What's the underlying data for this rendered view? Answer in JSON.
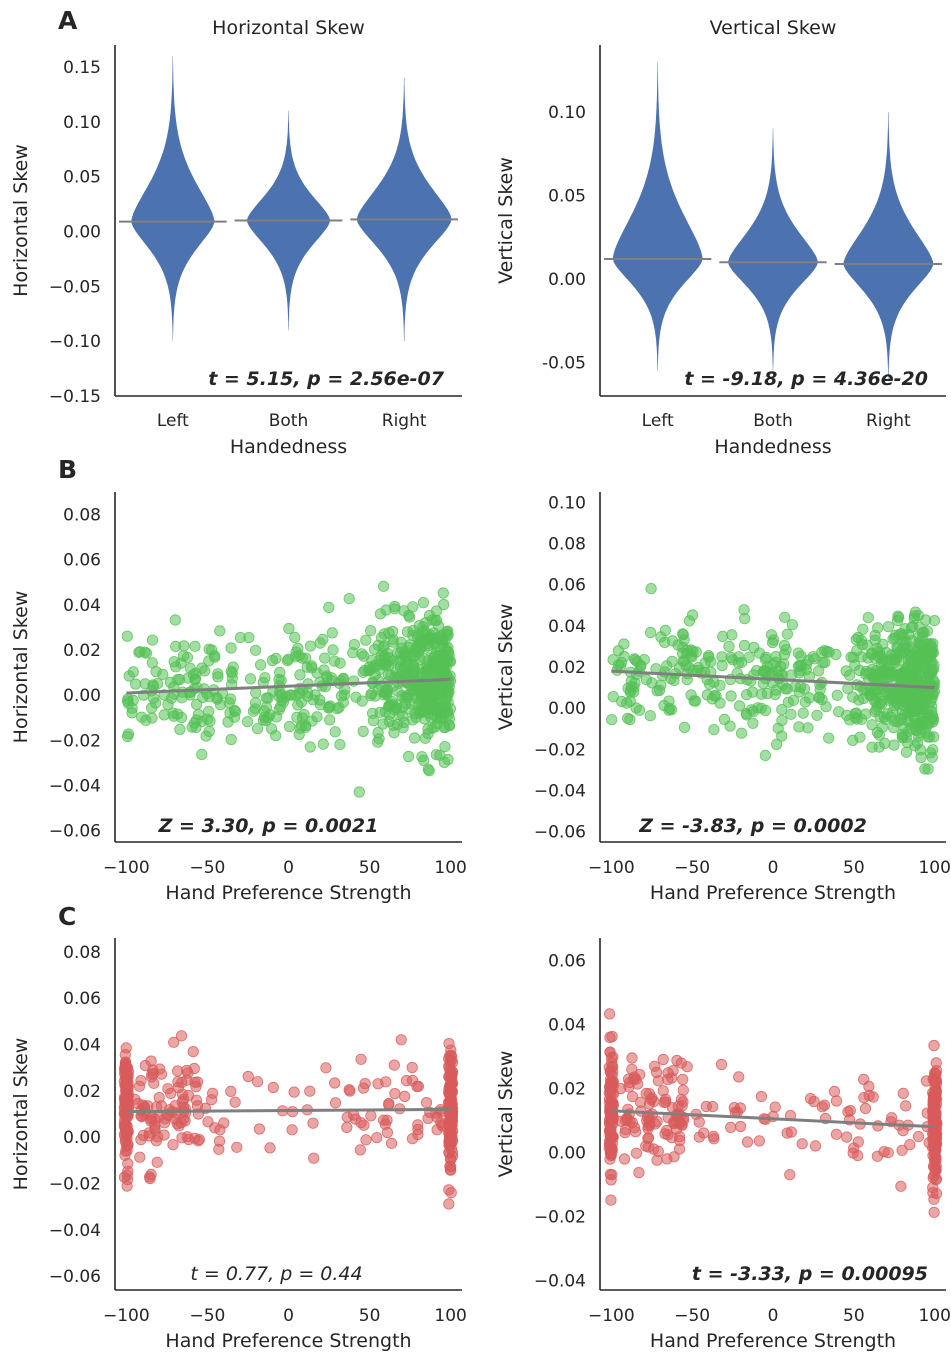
{
  "panel_letters": [
    "A",
    "B",
    "C"
  ],
  "colors": {
    "violin": "#4c72b0",
    "scatter_B": "#55c156",
    "scatter_C": "#d85b5b",
    "fit": "#7f7f7f",
    "axis": "#262626"
  },
  "chart_data": [
    {
      "panel": "A",
      "type": "violin",
      "title": "Horizontal Skew",
      "xlabel": "Handedness",
      "ylabel": "Horizontal Skew",
      "categories": [
        "Left",
        "Both",
        "Right"
      ],
      "ylim": [
        -0.15,
        0.17
      ],
      "yticks": [
        "0.15",
        "0.10",
        "0.05",
        "0.00",
        "−0.05",
        "−0.10",
        "−0.15"
      ],
      "ytick_values": [
        0.15,
        0.1,
        0.05,
        0.0,
        -0.05,
        -0.1,
        -0.15
      ],
      "median": [
        0.009,
        0.01,
        0.011
      ],
      "min": [
        -0.1,
        -0.09,
        -0.1
      ],
      "max": [
        0.16,
        0.11,
        0.14
      ],
      "width": [
        0.72,
        0.72,
        0.82
      ],
      "stat_text": "t = 5.15, p = 2.56e-07",
      "stat_bold": true
    },
    {
      "panel": "A",
      "type": "violin",
      "title": "Vertical Skew",
      "xlabel": "Handedness",
      "ylabel": "Vertical Skew",
      "categories": [
        "Left",
        "Both",
        "Right"
      ],
      "ylim": [
        -0.07,
        0.14
      ],
      "yticks": [
        "0.10",
        "0.05",
        "0.00",
        "-0.05"
      ],
      "ytick_values": [
        0.1,
        0.05,
        0.0,
        -0.05
      ],
      "median": [
        0.012,
        0.01,
        0.009
      ],
      "min": [
        -0.055,
        -0.055,
        -0.06
      ],
      "max": [
        0.13,
        0.09,
        0.1
      ],
      "width": [
        0.78,
        0.78,
        0.78
      ],
      "stat_text": "t = -9.18, p = 4.36e-20",
      "stat_bold": true
    },
    {
      "panel": "B",
      "type": "scatter",
      "xlabel": "Hand Preference Strength",
      "ylabel": "Horizontal Skew",
      "xlim": [
        -107,
        107
      ],
      "ylim": [
        -0.065,
        0.09
      ],
      "xticks": [
        "−100",
        "−50",
        "0",
        "50",
        "100"
      ],
      "xtick_values": [
        -100,
        -50,
        0,
        50,
        100
      ],
      "yticks": [
        "0.08",
        "0.06",
        "0.04",
        "0.02",
        "0.00",
        "−0.02",
        "−0.04",
        "−0.06"
      ],
      "ytick_values": [
        0.08,
        0.06,
        0.04,
        0.02,
        0.0,
        -0.02,
        -0.04,
        -0.06
      ],
      "fit": [
        [
          -100,
          0.001
        ],
        [
          100,
          0.007
        ]
      ],
      "stat_text": "Z = 3.30, p = 0.0021",
      "stat_bold": true
    },
    {
      "panel": "B",
      "type": "scatter",
      "xlabel": "Hand Preference Strength",
      "ylabel": "Vertical Skew",
      "xlim": [
        -107,
        107
      ],
      "ylim": [
        -0.065,
        0.105
      ],
      "xticks": [
        "−100",
        "−50",
        "0",
        "50",
        "100"
      ],
      "xtick_values": [
        -100,
        -50,
        0,
        50,
        100
      ],
      "yticks": [
        "0.10",
        "0.08",
        "0.06",
        "0.04",
        "0.02",
        "0.00",
        "−0.02",
        "−0.04",
        "−0.06"
      ],
      "ytick_values": [
        0.1,
        0.08,
        0.06,
        0.04,
        0.02,
        0.0,
        -0.02,
        -0.04,
        -0.06
      ],
      "fit": [
        [
          -100,
          0.018
        ],
        [
          100,
          0.01
        ]
      ],
      "stat_text": "Z = -3.83, p = 0.0002",
      "stat_bold": true
    },
    {
      "panel": "C",
      "type": "scatter",
      "xlabel": "Hand Preference Strength",
      "ylabel": "Horizontal Skew",
      "xlim": [
        -107,
        107
      ],
      "ylim": [
        -0.066,
        0.086
      ],
      "xticks": [
        "−100",
        "−50",
        "0",
        "50",
        "100"
      ],
      "xtick_values": [
        -100,
        -50,
        0,
        50,
        100
      ],
      "yticks": [
        "0.08",
        "0.06",
        "0.04",
        "0.02",
        "0.00",
        "−0.02",
        "−0.04",
        "−0.06"
      ],
      "ytick_values": [
        0.08,
        0.06,
        0.04,
        0.02,
        0.0,
        -0.02,
        -0.04,
        -0.06
      ],
      "fit": [
        [
          -100,
          0.011
        ],
        [
          100,
          0.012
        ]
      ],
      "stat_text": "t = 0.77, p = 0.44",
      "stat_bold": false
    },
    {
      "panel": "C",
      "type": "scatter",
      "xlabel": "Hand Preference Strength",
      "ylabel": "Vertical Skew",
      "xlim": [
        -107,
        107
      ],
      "ylim": [
        -0.043,
        0.067
      ],
      "xticks": [
        "−100",
        "−50",
        "0",
        "50",
        "100"
      ],
      "xtick_values": [
        -100,
        -50,
        0,
        50,
        100
      ],
      "yticks": [
        "0.06",
        "0.04",
        "0.02",
        "0.00",
        "−0.02",
        "−0.04"
      ],
      "ytick_values": [
        0.06,
        0.04,
        0.02,
        0.0,
        -0.02,
        -0.04
      ],
      "fit": [
        [
          -100,
          0.013
        ],
        [
          100,
          0.008
        ]
      ],
      "stat_text": "t = -3.33, p = 0.00095",
      "stat_bold": true
    }
  ]
}
